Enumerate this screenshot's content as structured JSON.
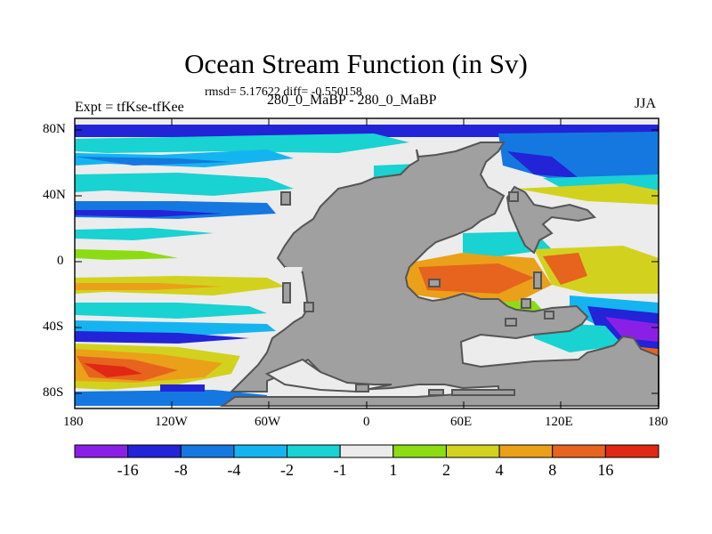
{
  "title": "Ocean Stream Function (in Sv)",
  "stats": "rmsd= 5.17622 diff= -0.550158",
  "experiment": "Expt = tfKse-tfKee",
  "subtitle": "280_0_MaBP - 280_0_MaBP",
  "season": "JJA",
  "y_ticks": [
    "80N",
    "40N",
    "0",
    "40S",
    "80S"
  ],
  "x_ticks": [
    "180",
    "120W",
    "60W",
    "0",
    "60E",
    "120E",
    "180"
  ],
  "colorbar": {
    "labels": [
      "-16",
      "-8",
      "-4",
      "-2",
      "-1",
      "1",
      "2",
      "4",
      "8",
      "16"
    ],
    "colors": [
      "#8a20e6",
      "#2323d8",
      "#1478e0",
      "#14b4f0",
      "#19d2d2",
      "#ececec",
      "#8cdc14",
      "#d2d21e",
      "#eba019",
      "#e6641e",
      "#e12814"
    ]
  },
  "land_color": "#a0a0a0"
}
